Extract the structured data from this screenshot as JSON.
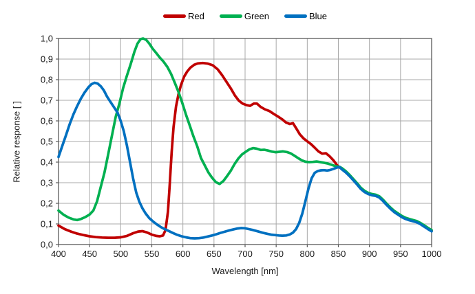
{
  "chart_data": {
    "type": "line",
    "title": "",
    "xlabel": "Wavelength [nm]",
    "ylabel": "Relative response [ ]",
    "xlim": [
      400,
      1000
    ],
    "ylim": [
      0.0,
      1.0
    ],
    "grid": true,
    "legend_position": "top-center",
    "x_ticks": [
      400,
      450,
      500,
      550,
      600,
      650,
      700,
      750,
      800,
      850,
      900,
      950,
      1000
    ],
    "y_ticks": [
      {
        "v": 1.0,
        "label": "1,0"
      },
      {
        "v": 0.9,
        "label": "0,9"
      },
      {
        "v": 0.8,
        "label": "0,8"
      },
      {
        "v": 0.7,
        "label": "0,7"
      },
      {
        "v": 0.6,
        "label": "0,6"
      },
      {
        "v": 0.5,
        "label": "0,5"
      },
      {
        "v": 0.4,
        "label": "0,4"
      },
      {
        "v": 0.3,
        "label": "0,3"
      },
      {
        "v": 0.2,
        "label": "0,2"
      },
      {
        "v": 0.1,
        "label": "0,1"
      },
      {
        "v": 0.0,
        "label": "0,0"
      }
    ],
    "grid_color": "#a8a8a8",
    "border_color": "#595959",
    "series": [
      {
        "name": "Red",
        "color": "#c00000",
        "points": [
          [
            400,
            0.092
          ],
          [
            410,
            0.075
          ],
          [
            420,
            0.063
          ],
          [
            430,
            0.053
          ],
          [
            440,
            0.046
          ],
          [
            450,
            0.04
          ],
          [
            460,
            0.036
          ],
          [
            470,
            0.034
          ],
          [
            480,
            0.033
          ],
          [
            490,
            0.033
          ],
          [
            500,
            0.035
          ],
          [
            510,
            0.042
          ],
          [
            520,
            0.055
          ],
          [
            528,
            0.063
          ],
          [
            535,
            0.065
          ],
          [
            542,
            0.059
          ],
          [
            550,
            0.048
          ],
          [
            557,
            0.042
          ],
          [
            563,
            0.04
          ],
          [
            568,
            0.044
          ],
          [
            572,
            0.07
          ],
          [
            576,
            0.16
          ],
          [
            579,
            0.3
          ],
          [
            582,
            0.45
          ],
          [
            585,
            0.57
          ],
          [
            589,
            0.67
          ],
          [
            593,
            0.73
          ],
          [
            597,
            0.775
          ],
          [
            602,
            0.815
          ],
          [
            607,
            0.84
          ],
          [
            612,
            0.858
          ],
          [
            618,
            0.872
          ],
          [
            624,
            0.879
          ],
          [
            632,
            0.881
          ],
          [
            640,
            0.878
          ],
          [
            648,
            0.87
          ],
          [
            656,
            0.85
          ],
          [
            663,
            0.822
          ],
          [
            670,
            0.79
          ],
          [
            677,
            0.758
          ],
          [
            684,
            0.722
          ],
          [
            690,
            0.698
          ],
          [
            696,
            0.684
          ],
          [
            702,
            0.677
          ],
          [
            708,
            0.673
          ],
          [
            714,
            0.684
          ],
          [
            719,
            0.684
          ],
          [
            725,
            0.668
          ],
          [
            732,
            0.656
          ],
          [
            739,
            0.648
          ],
          [
            746,
            0.634
          ],
          [
            753,
            0.621
          ],
          [
            760,
            0.607
          ],
          [
            766,
            0.592
          ],
          [
            772,
            0.585
          ],
          [
            777,
            0.589
          ],
          [
            782,
            0.565
          ],
          [
            788,
            0.535
          ],
          [
            794,
            0.515
          ],
          [
            800,
            0.501
          ],
          [
            806,
            0.487
          ],
          [
            812,
            0.47
          ],
          [
            818,
            0.452
          ],
          [
            824,
            0.441
          ],
          [
            830,
            0.443
          ],
          [
            836,
            0.428
          ],
          [
            842,
            0.409
          ],
          [
            848,
            0.385
          ],
          [
            852,
            0.374
          ],
          [
            856,
            0.366
          ],
          [
            862,
            0.352
          ],
          [
            868,
            0.334
          ],
          [
            874,
            0.314
          ],
          [
            880,
            0.294
          ],
          [
            886,
            0.272
          ],
          [
            892,
            0.257
          ],
          [
            898,
            0.247
          ],
          [
            904,
            0.241
          ],
          [
            910,
            0.238
          ],
          [
            916,
            0.23
          ],
          [
            922,
            0.213
          ],
          [
            928,
            0.193
          ],
          [
            934,
            0.175
          ],
          [
            940,
            0.159
          ],
          [
            946,
            0.147
          ],
          [
            952,
            0.135
          ],
          [
            958,
            0.126
          ],
          [
            964,
            0.12
          ],
          [
            970,
            0.115
          ],
          [
            976,
            0.11
          ],
          [
            982,
            0.101
          ],
          [
            988,
            0.089
          ],
          [
            994,
            0.077
          ],
          [
            1000,
            0.066
          ]
        ]
      },
      {
        "name": "Green",
        "color": "#00b050",
        "points": [
          [
            400,
            0.165
          ],
          [
            408,
            0.145
          ],
          [
            416,
            0.131
          ],
          [
            424,
            0.122
          ],
          [
            430,
            0.119
          ],
          [
            436,
            0.124
          ],
          [
            443,
            0.133
          ],
          [
            450,
            0.146
          ],
          [
            456,
            0.165
          ],
          [
            462,
            0.21
          ],
          [
            468,
            0.28
          ],
          [
            474,
            0.35
          ],
          [
            480,
            0.44
          ],
          [
            486,
            0.53
          ],
          [
            492,
            0.62
          ],
          [
            498,
            0.685
          ],
          [
            504,
            0.76
          ],
          [
            510,
            0.82
          ],
          [
            516,
            0.875
          ],
          [
            522,
            0.935
          ],
          [
            527,
            0.975
          ],
          [
            532,
            0.997
          ],
          [
            536,
            1.0
          ],
          [
            541,
            0.993
          ],
          [
            546,
            0.975
          ],
          [
            551,
            0.952
          ],
          [
            557,
            0.93
          ],
          [
            563,
            0.907
          ],
          [
            569,
            0.887
          ],
          [
            575,
            0.862
          ],
          [
            581,
            0.828
          ],
          [
            587,
            0.785
          ],
          [
            593,
            0.74
          ],
          [
            599,
            0.687
          ],
          [
            605,
            0.63
          ],
          [
            611,
            0.578
          ],
          [
            617,
            0.525
          ],
          [
            623,
            0.478
          ],
          [
            629,
            0.42
          ],
          [
            635,
            0.385
          ],
          [
            641,
            0.35
          ],
          [
            647,
            0.324
          ],
          [
            653,
            0.303
          ],
          [
            659,
            0.294
          ],
          [
            665,
            0.308
          ],
          [
            671,
            0.332
          ],
          [
            677,
            0.358
          ],
          [
            683,
            0.39
          ],
          [
            689,
            0.417
          ],
          [
            695,
            0.437
          ],
          [
            701,
            0.45
          ],
          [
            707,
            0.462
          ],
          [
            713,
            0.468
          ],
          [
            719,
            0.465
          ],
          [
            725,
            0.459
          ],
          [
            731,
            0.46
          ],
          [
            737,
            0.456
          ],
          [
            743,
            0.451
          ],
          [
            749,
            0.448
          ],
          [
            755,
            0.45
          ],
          [
            761,
            0.452
          ],
          [
            767,
            0.449
          ],
          [
            773,
            0.443
          ],
          [
            779,
            0.432
          ],
          [
            785,
            0.42
          ],
          [
            791,
            0.409
          ],
          [
            797,
            0.402
          ],
          [
            803,
            0.4
          ],
          [
            809,
            0.401
          ],
          [
            815,
            0.403
          ],
          [
            821,
            0.4
          ],
          [
            827,
            0.397
          ],
          [
            833,
            0.393
          ],
          [
            839,
            0.387
          ],
          [
            845,
            0.381
          ],
          [
            852,
            0.377
          ],
          [
            856,
            0.37
          ],
          [
            862,
            0.356
          ],
          [
            868,
            0.338
          ],
          [
            874,
            0.318
          ],
          [
            880,
            0.298
          ],
          [
            886,
            0.276
          ],
          [
            892,
            0.261
          ],
          [
            898,
            0.251
          ],
          [
            904,
            0.245
          ],
          [
            910,
            0.242
          ],
          [
            916,
            0.234
          ],
          [
            922,
            0.217
          ],
          [
            928,
            0.197
          ],
          [
            934,
            0.179
          ],
          [
            940,
            0.163
          ],
          [
            946,
            0.151
          ],
          [
            952,
            0.139
          ],
          [
            958,
            0.13
          ],
          [
            964,
            0.124
          ],
          [
            970,
            0.119
          ],
          [
            976,
            0.114
          ],
          [
            982,
            0.105
          ],
          [
            988,
            0.093
          ],
          [
            994,
            0.081
          ],
          [
            1000,
            0.07
          ]
        ]
      },
      {
        "name": "Blue",
        "color": "#0070c0",
        "points": [
          [
            400,
            0.425
          ],
          [
            406,
            0.478
          ],
          [
            412,
            0.53
          ],
          [
            418,
            0.585
          ],
          [
            424,
            0.632
          ],
          [
            430,
            0.672
          ],
          [
            436,
            0.708
          ],
          [
            442,
            0.738
          ],
          [
            448,
            0.763
          ],
          [
            453,
            0.778
          ],
          [
            458,
            0.785
          ],
          [
            463,
            0.781
          ],
          [
            468,
            0.768
          ],
          [
            473,
            0.748
          ],
          [
            478,
            0.718
          ],
          [
            484,
            0.69
          ],
          [
            490,
            0.663
          ],
          [
            495,
            0.64
          ],
          [
            500,
            0.6
          ],
          [
            505,
            0.55
          ],
          [
            510,
            0.48
          ],
          [
            515,
            0.4
          ],
          [
            520,
            0.32
          ],
          [
            525,
            0.252
          ],
          [
            530,
            0.208
          ],
          [
            535,
            0.176
          ],
          [
            540,
            0.151
          ],
          [
            546,
            0.128
          ],
          [
            552,
            0.112
          ],
          [
            558,
            0.098
          ],
          [
            564,
            0.086
          ],
          [
            570,
            0.076
          ],
          [
            577,
            0.066
          ],
          [
            584,
            0.056
          ],
          [
            591,
            0.047
          ],
          [
            598,
            0.04
          ],
          [
            605,
            0.035
          ],
          [
            612,
            0.031
          ],
          [
            619,
            0.03
          ],
          [
            626,
            0.031
          ],
          [
            633,
            0.034
          ],
          [
            640,
            0.039
          ],
          [
            647,
            0.044
          ],
          [
            654,
            0.05
          ],
          [
            661,
            0.057
          ],
          [
            668,
            0.063
          ],
          [
            675,
            0.069
          ],
          [
            682,
            0.074
          ],
          [
            688,
            0.078
          ],
          [
            694,
            0.08
          ],
          [
            700,
            0.079
          ],
          [
            706,
            0.075
          ],
          [
            712,
            0.071
          ],
          [
            718,
            0.066
          ],
          [
            724,
            0.061
          ],
          [
            730,
            0.056
          ],
          [
            736,
            0.052
          ],
          [
            742,
            0.048
          ],
          [
            748,
            0.046
          ],
          [
            754,
            0.044
          ],
          [
            760,
            0.043
          ],
          [
            766,
            0.044
          ],
          [
            772,
            0.049
          ],
          [
            777,
            0.058
          ],
          [
            782,
            0.075
          ],
          [
            787,
            0.105
          ],
          [
            792,
            0.15
          ],
          [
            797,
            0.21
          ],
          [
            802,
            0.272
          ],
          [
            807,
            0.322
          ],
          [
            812,
            0.348
          ],
          [
            817,
            0.357
          ],
          [
            822,
            0.36
          ],
          [
            827,
            0.361
          ],
          [
            832,
            0.359
          ],
          [
            837,
            0.362
          ],
          [
            842,
            0.367
          ],
          [
            847,
            0.373
          ],
          [
            852,
            0.376
          ],
          [
            856,
            0.364
          ],
          [
            862,
            0.35
          ],
          [
            868,
            0.332
          ],
          [
            874,
            0.312
          ],
          [
            880,
            0.292
          ],
          [
            886,
            0.27
          ],
          [
            892,
            0.255
          ],
          [
            898,
            0.245
          ],
          [
            904,
            0.239
          ],
          [
            910,
            0.236
          ],
          [
            916,
            0.228
          ],
          [
            922,
            0.211
          ],
          [
            928,
            0.191
          ],
          [
            934,
            0.173
          ],
          [
            940,
            0.157
          ],
          [
            946,
            0.145
          ],
          [
            952,
            0.133
          ],
          [
            958,
            0.124
          ],
          [
            964,
            0.118
          ],
          [
            970,
            0.113
          ],
          [
            976,
            0.108
          ],
          [
            982,
            0.099
          ],
          [
            988,
            0.087
          ],
          [
            994,
            0.075
          ],
          [
            1000,
            0.064
          ]
        ]
      }
    ]
  }
}
